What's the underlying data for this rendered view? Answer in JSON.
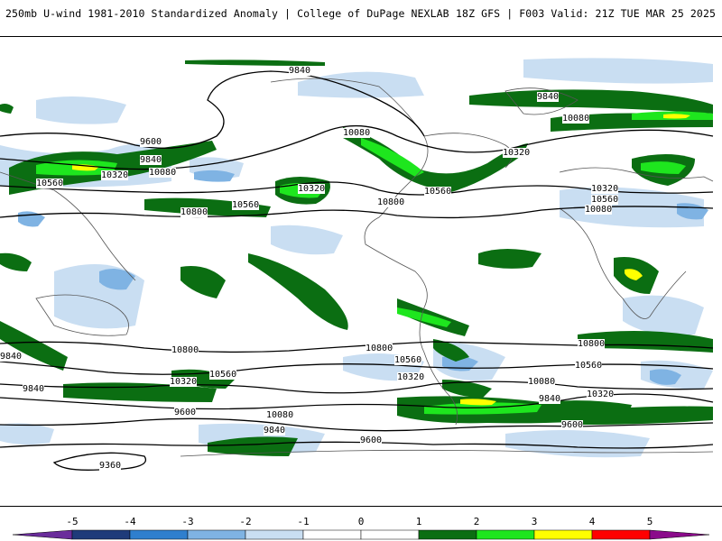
{
  "header": {
    "left": "250mb U-wind 1981-2010 Standardized Anomaly | College of DuPage NEXLAB",
    "right": "18Z GFS | F003 Valid: 21Z TUE MAR 25 2025"
  },
  "contour_labels": [
    "9840",
    "9600",
    "9840",
    "10080",
    "10560",
    "10320",
    "10800",
    "10560",
    "10080",
    "10560",
    "10800",
    "10320",
    "9840",
    "10080",
    "10320",
    "10320",
    "10560",
    "10080",
    "10800",
    "10560",
    "10320",
    "9840",
    "10080",
    "9600",
    "9840",
    "9360",
    "10800",
    "10560",
    "10320",
    "10080",
    "9840",
    "9600",
    "10800",
    "10560",
    "10320",
    "9600",
    "9840"
  ],
  "colorbar": {
    "labels": [
      "-5",
      "-4",
      "-3",
      "-2",
      "-1",
      "0",
      "1",
      "2",
      "3",
      "4",
      "5"
    ],
    "colors": [
      "#6a2c9b",
      "#1f3b7a",
      "#2f7fce",
      "#7fb3e3",
      "#c9def2",
      "#ffffff",
      "#ffffff",
      "#0b6e12",
      "#1ee61e",
      "#ffff00",
      "#ff0000",
      "#8b0a8b"
    ]
  }
}
